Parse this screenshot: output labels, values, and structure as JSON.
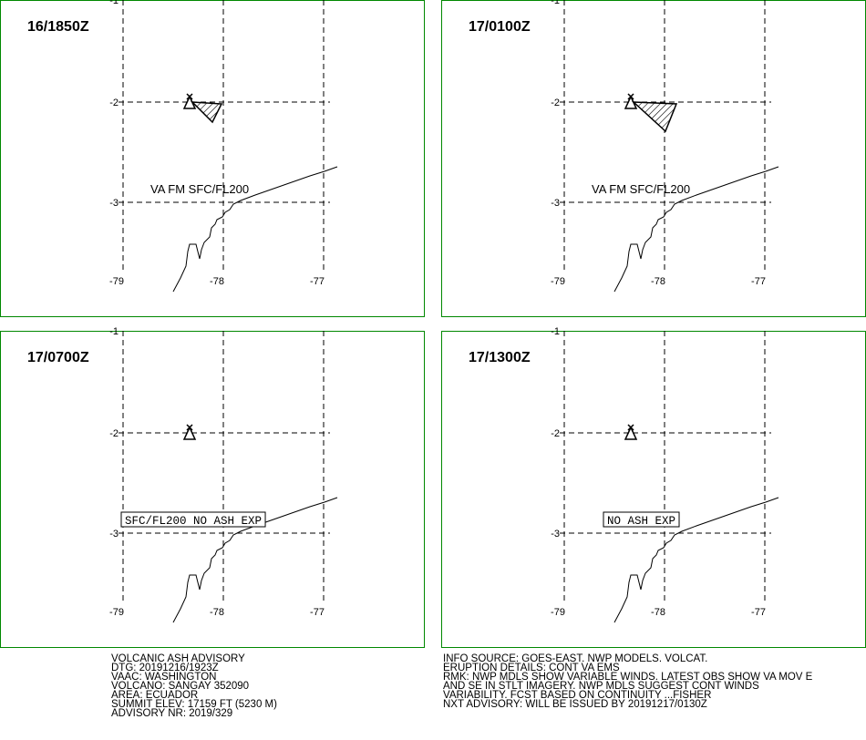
{
  "lat_labels": [
    "-1",
    "-2",
    "-3"
  ],
  "lon_labels": [
    "-79",
    "-78",
    "-77"
  ],
  "panels": [
    {
      "time": "16/1850Z",
      "annotation": "VA FM SFC/FL200"
    },
    {
      "time": "17/0100Z",
      "annotation": "VA FM SFC/FL200"
    },
    {
      "time": "17/0700Z",
      "annotation": "SFC/FL200 NO ASH EXP"
    },
    {
      "time": "17/1300Z",
      "annotation": "NO ASH EXP"
    }
  ],
  "info_left": [
    "VOLCANIC ASH ADVISORY",
    "DTG: 20191216/1923Z",
    "VAAC: WASHINGTON",
    "VOLCANO: SANGAY 352090",
    "AREA: ECUADOR",
    "SUMMIT ELEV: 17159 FT (5230 M)",
    "ADVISORY NR: 2019/329"
  ],
  "info_right": [
    "INFO SOURCE: GOES-EAST. NWP MODELS. VOLCAT.",
    "ERUPTION DETAILS: CONT VA EMS",
    "RMK: NWP MDLS SHOW VARIABLE WINDS. LATEST OBS SHOW VA MOV E",
    "AND SE IN STLT IMAGERY. NWP MDLS SUGGEST CONT WINDS",
    "VARIABILITY. FCST BASED ON CONTINUITY ...FISHER",
    "NXT ADVISORY: WILL BE ISSUED BY 20191217/0130Z"
  ]
}
